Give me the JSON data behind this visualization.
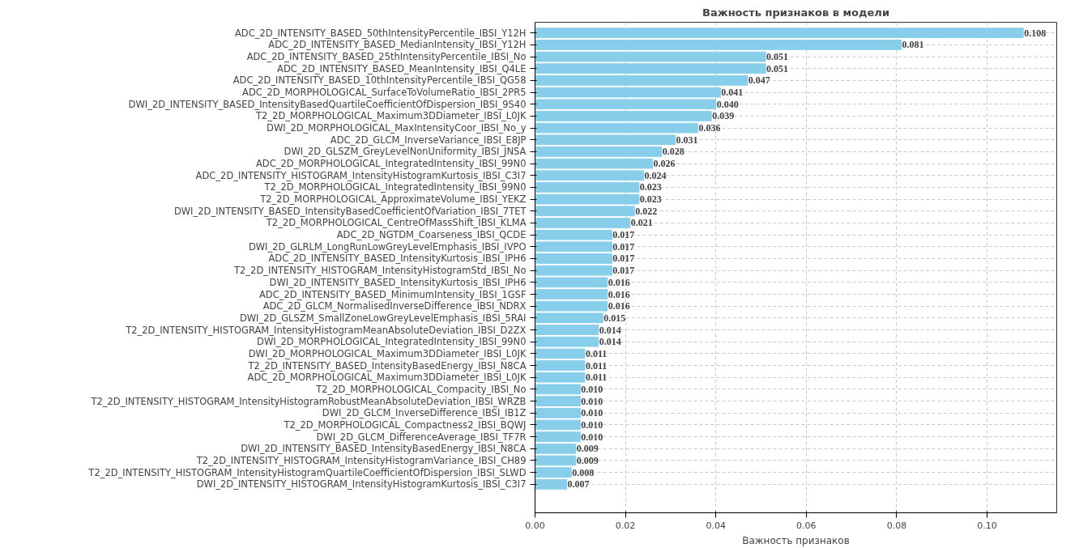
{
  "chart_data": {
    "type": "bar",
    "orientation": "horizontal",
    "title": "Важность признаков в модели",
    "xlabel": "Важность признаков",
    "categories": [
      "ADC_2D_INTENSITY_BASED_50thIntensityPercentile_IBSI_Y12H",
      "ADC_2D_INTENSITY_BASED_MedianIntensity_IBSI_Y12H",
      "ADC_2D_INTENSITY_BASED_25thIntensityPercentile_IBSI_No",
      "ADC_2D_INTENSITY_BASED_MeanIntensity_IBSI_Q4LE",
      "ADC_2D_INTENSITY_BASED_10thIntensityPercentile_IBSI_QG58",
      "ADC_2D_MORPHOLOGICAL_SurfaceToVolumeRatio_IBSI_2PR5",
      "DWI_2D_INTENSITY_BASED_IntensityBasedQuartileCoefficientOfDispersion_IBSI_9S40",
      "T2_2D_MORPHOLOGICAL_Maximum3DDiameter_IBSI_L0JK",
      "DWI_2D_MORPHOLOGICAL_MaxIntensityCoor_IBSI_No_y",
      "ADC_2D_GLCM_InverseVariance_IBSI_E8JP",
      "DWI_2D_GLSZM_GreyLevelNonUniformity_IBSI_JNSA",
      "ADC_2D_MORPHOLOGICAL_IntegratedIntensity_IBSI_99N0",
      "ADC_2D_INTENSITY_HISTOGRAM_IntensityHistogramKurtosis_IBSI_C3I7",
      "T2_2D_MORPHOLOGICAL_IntegratedIntensity_IBSI_99N0",
      "T2_2D_MORPHOLOGICAL_ApproximateVolume_IBSI_YEKZ",
      "DWI_2D_INTENSITY_BASED_IntensityBasedCoefficientOfVariation_IBSI_7TET",
      "T2_2D_MORPHOLOGICAL_CentreOfMassShift_IBSI_KLMA",
      "ADC_2D_NGTDM_Coarseness_IBSI_QCDE",
      "DWI_2D_GLRLM_LongRunLowGreyLevelEmphasis_IBSI_IVPO",
      "ADC_2D_INTENSITY_BASED_IntensityKurtosis_IBSI_IPH6",
      "T2_2D_INTENSITY_HISTOGRAM_IntensityHistogramStd_IBSI_No",
      "DWI_2D_INTENSITY_BASED_IntensityKurtosis_IBSI_IPH6",
      "ADC_2D_INTENSITY_BASED_MinimumIntensity_IBSI_1GSF",
      "ADC_2D_GLCM_NormalisedInverseDifference_IBSI_NDRX",
      "DWI_2D_GLSZM_SmallZoneLowGreyLevelEmphasis_IBSI_5RAI",
      "T2_2D_INTENSITY_HISTOGRAM_IntensityHistogramMeanAbsoluteDeviation_IBSI_D2ZX",
      "DWI_2D_MORPHOLOGICAL_IntegratedIntensity_IBSI_99N0",
      "DWI_2D_MORPHOLOGICAL_Maximum3DDiameter_IBSI_L0JK",
      "T2_2D_INTENSITY_BASED_IntensityBasedEnergy_IBSI_N8CA",
      "ADC_2D_MORPHOLOGICAL_Maximum3DDiameter_IBSI_L0JK",
      "T2_2D_MORPHOLOGICAL_Compacity_IBSI_No",
      "T2_2D_INTENSITY_HISTOGRAM_IntensityHistogramRobustMeanAbsoluteDeviation_IBSI_WRZB",
      "DWI_2D_GLCM_InverseDifference_IBSI_IB1Z",
      "T2_2D_MORPHOLOGICAL_Compactness2_IBSI_BQWJ",
      "DWI_2D_GLCM_DifferenceAverage_IBSI_TF7R",
      "DWI_2D_INTENSITY_BASED_IntensityBasedEnergy_IBSI_N8CA",
      "T2_2D_INTENSITY_HISTOGRAM_IntensityHistogramVariance_IBSI_CH89",
      "T2_2D_INTENSITY_HISTOGRAM_IntensityHistogramQuartileCoefficientOfDispersion_IBSI_SLWD",
      "DWI_2D_INTENSITY_HISTOGRAM_IntensityHistogramKurtosis_IBSI_C3I7"
    ],
    "values": [
      0.108,
      0.081,
      0.051,
      0.051,
      0.047,
      0.041,
      0.04,
      0.039,
      0.036,
      0.031,
      0.028,
      0.026,
      0.024,
      0.023,
      0.023,
      0.022,
      0.021,
      0.017,
      0.017,
      0.017,
      0.017,
      0.016,
      0.016,
      0.016,
      0.015,
      0.014,
      0.014,
      0.011,
      0.011,
      0.011,
      0.01,
      0.01,
      0.01,
      0.01,
      0.01,
      0.009,
      0.009,
      0.008,
      0.007
    ],
    "value_labels": [
      "0.108",
      "0.081",
      "0.051",
      "0.051",
      "0.047",
      "0.041",
      "0.040",
      "0.039",
      "0.036",
      "0.031",
      "0.028",
      "0.026",
      "0.024",
      "0.023",
      "0.023",
      "0.022",
      "0.021",
      "0.017",
      "0.017",
      "0.017",
      "0.017",
      "0.016",
      "0.016",
      "0.016",
      "0.015",
      "0.014",
      "0.014",
      "0.011",
      "0.011",
      "0.011",
      "0.010",
      "0.010",
      "0.010",
      "0.010",
      "0.010",
      "0.009",
      "0.009",
      "0.008",
      "0.007"
    ],
    "color": "#87ceeb",
    "grid": true,
    "xlim": [
      0,
      0.1154
    ],
    "xticks": [
      {
        "value": 0,
        "label": "0.00"
      },
      {
        "value": 0.02,
        "label": "0.02"
      },
      {
        "value": 0.04,
        "label": "0.04"
      },
      {
        "value": 0.06,
        "label": "0.06"
      },
      {
        "value": 0.08,
        "label": "0.08"
      },
      {
        "value": 0.1,
        "label": "0.10"
      }
    ]
  }
}
